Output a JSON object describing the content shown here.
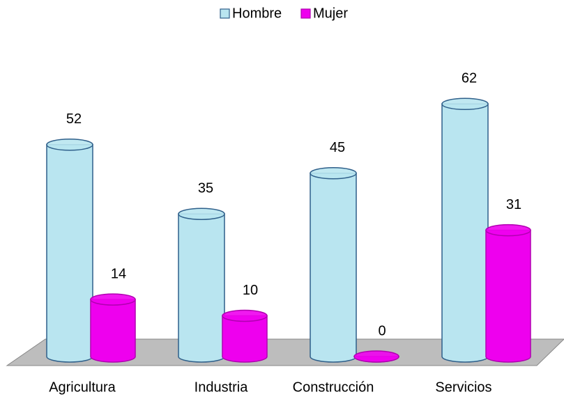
{
  "chart_data": {
    "type": "cylinder-bar",
    "categories": [
      "Agricultura",
      "Industria",
      "Construcción",
      "Servicios"
    ],
    "series": [
      {
        "name": "Hombre",
        "color": "#b9e5f0",
        "values": [
          52,
          35,
          45,
          62
        ]
      },
      {
        "name": "Mujer",
        "color": "#ee00ee",
        "values": [
          14,
          10,
          0,
          31
        ]
      }
    ],
    "legend": "top"
  }
}
